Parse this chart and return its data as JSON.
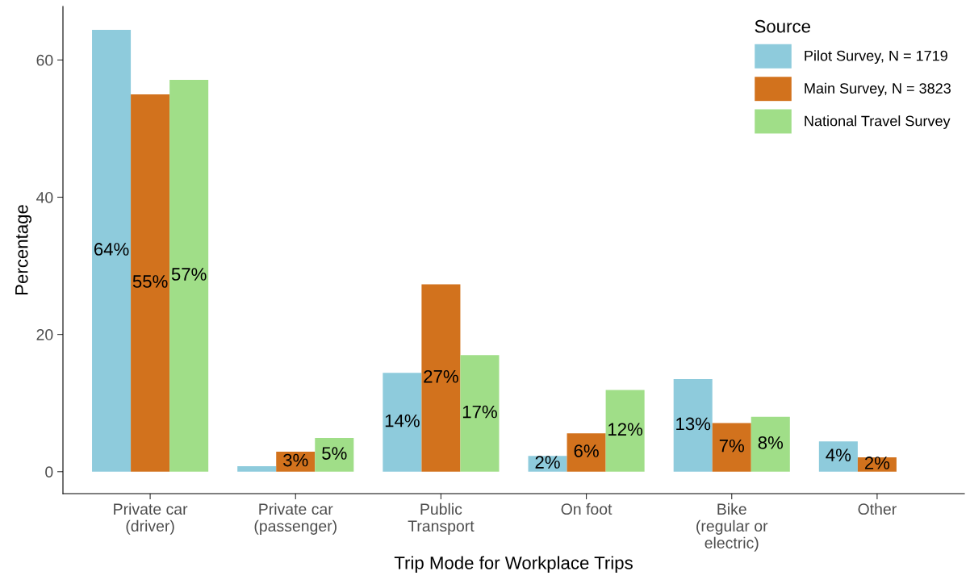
{
  "chart_data": {
    "type": "bar",
    "xlabel": "Trip Mode for Workplace Trips",
    "ylabel": "Percentage",
    "categories": [
      "Private car\n(driver)",
      "Private car\n(passenger)",
      "Public\nTransport",
      "On foot",
      "Bike\n(regular or\nelectric)",
      "Other"
    ],
    "series": [
      {
        "name": "Pilot Survey, N = 1719",
        "color": "#8ecbdc",
        "values": [
          64.4,
          0.8,
          14.4,
          2.3,
          13.5,
          4.4
        ],
        "value_labels": [
          "64%",
          null,
          "14%",
          "2%",
          "13%",
          "4%"
        ]
      },
      {
        "name": "Main Survey, N = 3823",
        "color": "#d2721d",
        "values": [
          55.0,
          2.9,
          27.3,
          5.6,
          7.1,
          2.1
        ],
        "value_labels": [
          "55%",
          "3%",
          "27%",
          "6%",
          "7%",
          "2%"
        ]
      },
      {
        "name": "National Travel Survey",
        "color": "#a0de88",
        "values": [
          57.1,
          4.9,
          17.0,
          11.9,
          8.0,
          null
        ],
        "value_labels": [
          "57%",
          "5%",
          "17%",
          "12%",
          "8%",
          null
        ]
      }
    ],
    "ylim": [
      -3.2,
      67.8
    ],
    "yticks": [
      0,
      20,
      40,
      60
    ],
    "grid": false,
    "legend": "top right",
    "legend_title": "Source"
  }
}
